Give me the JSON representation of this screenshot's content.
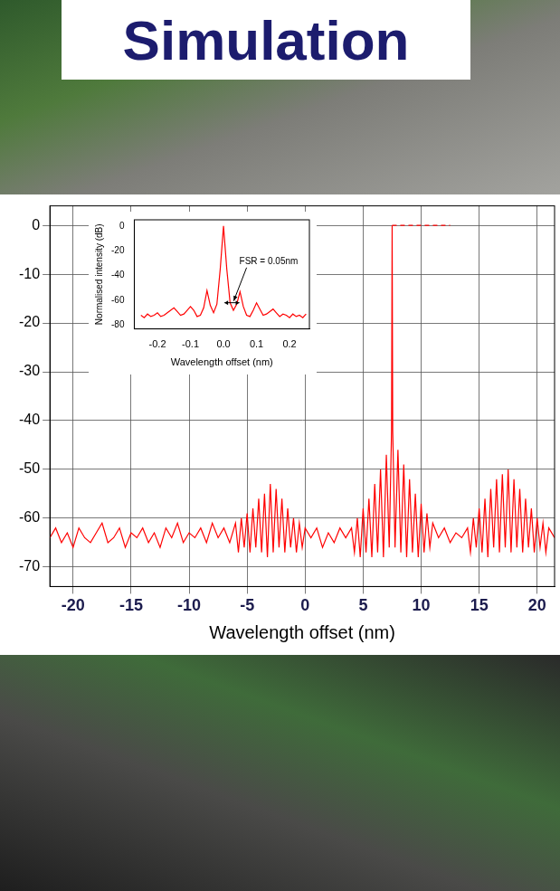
{
  "chart_data": [
    {
      "type": "line",
      "title": "Simulation",
      "x_label": "Wavelength offset (nm)",
      "x": [
        -22,
        -21.5,
        -21,
        -20.5,
        -20,
        -19.5,
        -19,
        -18.5,
        -18,
        -17.5,
        -17,
        -16.5,
        -16,
        -15.5,
        -15,
        -14.5,
        -14,
        -13.5,
        -13,
        -12.5,
        -12,
        -11.5,
        -11,
        -10.5,
        -10,
        -9.5,
        -9,
        -8.5,
        -8,
        -7.5,
        -7,
        -6.5,
        -6,
        -5.75,
        -5.5,
        -5.25,
        -5,
        -4.75,
        -4.5,
        -4.25,
        -4,
        -3.75,
        -3.5,
        -3.25,
        -3,
        -2.75,
        -2.5,
        -2.25,
        -2,
        -1.75,
        -1.5,
        -1.25,
        -1,
        -0.75,
        -0.5,
        -0.25,
        0,
        0.5,
        1,
        1.5,
        2,
        2.5,
        3,
        3.5,
        4,
        4.25,
        4.5,
        4.75,
        5,
        5.25,
        5.5,
        5.75,
        6,
        6.25,
        6.5,
        6.75,
        7,
        7.25,
        7.45,
        7.5,
        7.55,
        7.75,
        8,
        8.25,
        8.5,
        8.75,
        9,
        9.25,
        9.5,
        9.75,
        10,
        10.25,
        10.5,
        10.75,
        11,
        11.5,
        12,
        12.5,
        13,
        13.5,
        14,
        14.25,
        14.5,
        14.75,
        15,
        15.25,
        15.5,
        15.75,
        16,
        16.25,
        16.5,
        16.75,
        17,
        17.25,
        17.5,
        17.75,
        18,
        18.25,
        18.5,
        18.75,
        19,
        19.25,
        19.5,
        19.75,
        20,
        20.25,
        20.5,
        20.75,
        21,
        21.5
      ],
      "series": [
        {
          "color": "#ff0000",
          "values": [
            -64,
            -62,
            -65,
            -63,
            -66,
            -62,
            -64,
            -65,
            -63,
            -61,
            -65,
            -64,
            -62,
            -66,
            -63,
            -64,
            -62,
            -65,
            -63,
            -66,
            -62,
            -64,
            -61,
            -65,
            -63,
            -64,
            -62,
            -65,
            -61,
            -64,
            -62,
            -65,
            -61,
            -67,
            -60,
            -66,
            -59,
            -67,
            -58,
            -66,
            -56,
            -67,
            -55,
            -68,
            -53,
            -67,
            -54,
            -66,
            -56,
            -67,
            -58,
            -66,
            -60,
            -67,
            -61,
            -66,
            -62,
            -64,
            -62,
            -66,
            -63,
            -65,
            -62,
            -64,
            -62,
            -67,
            -60,
            -68,
            -58,
            -67,
            -56,
            -68,
            -53,
            -67,
            -50,
            -68,
            -47,
            -66,
            -42,
            0,
            -42,
            -66,
            -46,
            -67,
            -49,
            -68,
            -52,
            -67,
            -55,
            -68,
            -57,
            -67,
            -59,
            -66,
            -61,
            -64,
            -62,
            -65,
            -63,
            -64,
            -62,
            -67,
            -60,
            -66,
            -58,
            -67,
            -56,
            -68,
            -54,
            -66,
            -52,
            -67,
            -51,
            -66,
            -50,
            -67,
            -52,
            -66,
            -54,
            -67,
            -56,
            -66,
            -58,
            -67,
            -60,
            -66,
            -61,
            -67,
            -62,
            -64
          ]
        },
        {
          "color": "#ff0000",
          "line_style": "dashed",
          "x": [
            7.5,
            12.5
          ],
          "values": [
            0,
            0
          ]
        }
      ],
      "xlim": [
        -22,
        21.5
      ],
      "xticks": [
        -20,
        -15,
        -10,
        -5,
        0,
        5,
        10,
        15,
        20
      ],
      "ylim": [
        -74,
        4
      ],
      "yticks": [
        -70,
        -60,
        -50,
        -40,
        -30,
        -20,
        -10,
        0
      ],
      "grid": true
    },
    {
      "type": "line",
      "x_label": "Wavelength offset (nm)",
      "y_label": "Normalised intensity (dB)",
      "x": [
        -0.25,
        -0.24,
        -0.23,
        -0.22,
        -0.21,
        -0.2,
        -0.19,
        -0.18,
        -0.17,
        -0.16,
        -0.15,
        -0.14,
        -0.13,
        -0.12,
        -0.11,
        -0.1,
        -0.09,
        -0.08,
        -0.07,
        -0.06,
        -0.05,
        -0.04,
        -0.03,
        -0.02,
        -0.01,
        0,
        0.01,
        0.02,
        0.03,
        0.04,
        0.05,
        0.06,
        0.07,
        0.08,
        0.09,
        0.1,
        0.11,
        0.12,
        0.13,
        0.14,
        0.15,
        0.16,
        0.17,
        0.18,
        0.19,
        0.2,
        0.21,
        0.22,
        0.23,
        0.24,
        0.25
      ],
      "series": [
        {
          "color": "#ff0000",
          "values": [
            -72,
            -74,
            -71,
            -73,
            -72,
            -70,
            -73,
            -72,
            -70,
            -68,
            -66,
            -69,
            -72,
            -71,
            -68,
            -65,
            -68,
            -73,
            -72,
            -66,
            -52,
            -64,
            -70,
            -63,
            -35,
            0,
            -35,
            -62,
            -68,
            -63,
            -53,
            -65,
            -72,
            -73,
            -68,
            -62,
            -67,
            -72,
            -71,
            -69,
            -67,
            -70,
            -73,
            -71,
            -72,
            -74,
            -71,
            -73,
            -72,
            -74,
            -71
          ]
        }
      ],
      "xlim": [
        -0.27,
        0.26
      ],
      "xticks": [
        -0.2,
        -0.1,
        {
          "value": 0,
          "label": "0.0"
        },
        0.1,
        0.2
      ],
      "ylim": [
        -83,
        5
      ],
      "yticks": [
        -80,
        -60,
        -40,
        -20,
        0
      ],
      "annotations": [
        {
          "text": "FSR = 0.05nm"
        }
      ],
      "grid": false
    }
  ]
}
